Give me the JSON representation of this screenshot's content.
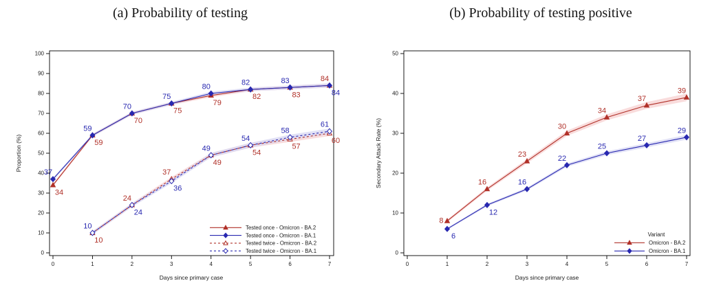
{
  "figures": [
    {
      "title": "(a) Probability of testing"
    },
    {
      "title": "(b) Probability of testing positive"
    }
  ],
  "chart_data": [
    {
      "type": "line",
      "title": "(a) Probability of testing",
      "xlabel": "Days since primary case",
      "ylabel": "Proportion (%)",
      "xlim": [
        0,
        7
      ],
      "ylim": [
        0,
        100
      ],
      "xticks": [
        0,
        1,
        2,
        3,
        4,
        5,
        6,
        7
      ],
      "yticks": [
        0,
        10,
        20,
        30,
        40,
        50,
        60,
        70,
        80,
        90,
        100
      ],
      "grid": false,
      "confidence_bands": true,
      "legend": {
        "title": "",
        "position": "bottom-right",
        "entries": [
          "Tested once - Omicron - BA.2",
          "Tested once - Omicron - BA.1",
          "Tested twice - Omicron - BA.2",
          "Tested twice - Omicron - BA.1"
        ]
      },
      "series": [
        {
          "name": "Tested once - Omicron - BA.2",
          "color": "#b03028",
          "band_color": "#f7d3d3",
          "line_style": "solid",
          "marker": "triangle",
          "marker_fill": "filled",
          "x": [
            0,
            1,
            2,
            3,
            4,
            5,
            6,
            7
          ],
          "y": [
            34,
            59,
            70,
            75,
            79,
            82,
            83,
            84
          ],
          "label_positions": [
            "below",
            "below",
            "below",
            "below",
            "below",
            "below",
            "below",
            "above"
          ]
        },
        {
          "name": "Tested once - Omicron - BA.1",
          "color": "#2828b0",
          "band_color": "#d9d9f4",
          "line_style": "solid",
          "marker": "diamond",
          "marker_fill": "filled",
          "x": [
            0,
            1,
            2,
            3,
            4,
            5,
            6,
            7
          ],
          "y": [
            37,
            59,
            70,
            75,
            80,
            82,
            83,
            84
          ],
          "label_positions": [
            "above",
            "above",
            "above",
            "above",
            "above",
            "above",
            "above",
            "below"
          ]
        },
        {
          "name": "Tested twice - Omicron - BA.2",
          "color": "#b03028",
          "band_color": "#f7d3d3",
          "line_style": "dashed",
          "marker": "triangle",
          "marker_fill": "open",
          "x": [
            1,
            2,
            3,
            4,
            5,
            6,
            7
          ],
          "y": [
            10,
            24,
            37,
            49,
            54,
            57,
            60
          ],
          "label_positions": [
            "below",
            "above",
            "above",
            "below",
            "below",
            "below",
            "below"
          ]
        },
        {
          "name": "Tested twice - Omicron - BA.1",
          "color": "#2828b0",
          "band_color": "#d9d9f4",
          "line_style": "dashed",
          "marker": "diamond",
          "marker_fill": "open",
          "x": [
            1,
            2,
            3,
            4,
            5,
            6,
            7
          ],
          "y": [
            10,
            24,
            36,
            49,
            54,
            58,
            61
          ],
          "label_positions": [
            "above",
            "below",
            "below",
            "above",
            "above",
            "above",
            "above"
          ]
        }
      ]
    },
    {
      "type": "line",
      "title": "(b) Probability of testing positive",
      "xlabel": "Days since primary case",
      "ylabel": "Secondary Attack Rate (%)",
      "xlim": [
        0,
        7
      ],
      "ylim": [
        0,
        50
      ],
      "xticks": [
        0,
        1,
        2,
        3,
        4,
        5,
        6,
        7
      ],
      "yticks": [
        0,
        10,
        20,
        30,
        40,
        50
      ],
      "grid": false,
      "confidence_bands": true,
      "legend": {
        "title": "Variant",
        "position": "bottom-right",
        "entries": [
          "Omicron - BA.2",
          "Omicron - BA.1"
        ]
      },
      "series": [
        {
          "name": "Omicron - BA.2",
          "color": "#b03028",
          "band_color": "#f7d3d3",
          "line_style": "solid",
          "marker": "triangle",
          "marker_fill": "filled",
          "x": [
            1,
            2,
            3,
            4,
            5,
            6,
            7
          ],
          "y": [
            8,
            16,
            23,
            30,
            34,
            37,
            39
          ],
          "label_positions": [
            "left",
            "above",
            "above",
            "above",
            "above",
            "above",
            "above"
          ]
        },
        {
          "name": "Omicron - BA.1",
          "color": "#2828b0",
          "band_color": "#d9d9f4",
          "line_style": "solid",
          "marker": "diamond",
          "marker_fill": "filled",
          "x": [
            1,
            2,
            3,
            4,
            5,
            6,
            7
          ],
          "y": [
            6,
            12,
            16,
            22,
            25,
            27,
            29
          ],
          "label_positions": [
            "below",
            "below",
            "above",
            "above",
            "above",
            "above",
            "above"
          ]
        }
      ]
    }
  ]
}
